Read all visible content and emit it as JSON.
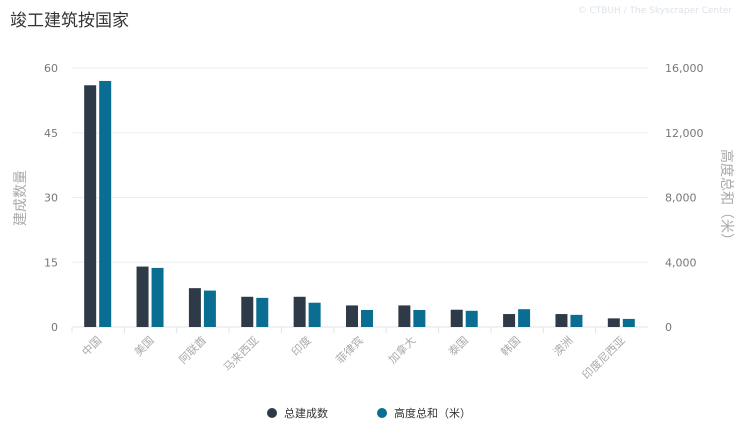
{
  "title": "竣工建筑按国家",
  "credit": "© CTBUH / The Skyscraper Center",
  "chart_data": {
    "type": "bar",
    "title": "竣工建筑按国家",
    "categories": [
      "中国",
      "美国",
      "阿联酋",
      "马来西亚",
      "印度",
      "菲律宾",
      "加拿大",
      "泰国",
      "韩国",
      "澳洲",
      "印度尼西亚"
    ],
    "series": [
      {
        "name": "总建成数",
        "axis": "left",
        "color": "#2e3a48",
        "values": [
          56,
          14,
          9,
          7,
          7,
          5,
          5,
          4,
          3,
          3,
          2
        ]
      },
      {
        "name": "高度总和（米）",
        "axis": "right",
        "color": "#0a6e93",
        "values": [
          15200,
          3650,
          2250,
          1800,
          1500,
          1050,
          1050,
          1000,
          1100,
          750,
          500
        ]
      }
    ],
    "ylabel": "建成数量",
    "y2label": "高度总和（米）",
    "ylim": [
      0,
      60
    ],
    "y2lim": [
      0,
      16000
    ],
    "yticks": [
      "0",
      "15",
      "30",
      "45",
      "60"
    ],
    "y2ticks": [
      "0",
      "4,000",
      "8,000",
      "12,000",
      "16,000"
    ],
    "grid": true,
    "legend": "bottom"
  }
}
